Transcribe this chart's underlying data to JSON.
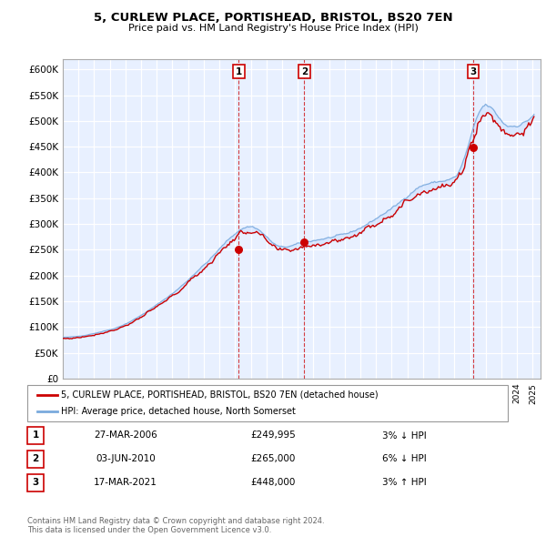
{
  "title": "5, CURLEW PLACE, PORTISHEAD, BRISTOL, BS20 7EN",
  "subtitle": "Price paid vs. HM Land Registry's House Price Index (HPI)",
  "legend_label_red": "5, CURLEW PLACE, PORTISHEAD, BRISTOL, BS20 7EN (detached house)",
  "legend_label_blue": "HPI: Average price, detached house, North Somerset",
  "footer_line1": "Contains HM Land Registry data © Crown copyright and database right 2024.",
  "footer_line2": "This data is licensed under the Open Government Licence v3.0.",
  "transactions": [
    {
      "num": 1,
      "date": "27-MAR-2006",
      "price": "£249,995",
      "pct": "3% ↓ HPI",
      "year": 2006.23
    },
    {
      "num": 2,
      "date": "03-JUN-2010",
      "price": "£265,000",
      "pct": "6% ↓ HPI",
      "year": 2010.42
    },
    {
      "num": 3,
      "date": "17-MAR-2021",
      "price": "£448,000",
      "pct": "3% ↑ HPI",
      "year": 2021.21
    }
  ],
  "transaction_values": [
    249995,
    265000,
    448000
  ],
  "ylim": [
    0,
    620000
  ],
  "yticks": [
    0,
    50000,
    100000,
    150000,
    200000,
    250000,
    300000,
    350000,
    400000,
    450000,
    500000,
    550000,
    600000
  ],
  "xlim_start": 1995.0,
  "xlim_end": 2025.5,
  "red_color": "#cc0000",
  "blue_fill_color": "#cce0ff",
  "blue_line_color": "#7aaadd",
  "background_color": "#e8f0ff",
  "grid_color": "#ffffff",
  "vline_color": "#cc0000"
}
